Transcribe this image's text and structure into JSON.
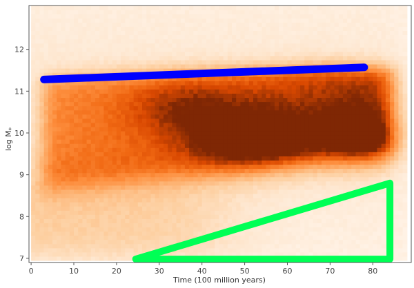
{
  "chart_data": {
    "type": "heatmap",
    "title": "",
    "xlabel": "Time (100 million years)",
    "ylabel": "log M",
    "ylabel_subscript": "*",
    "xlim": [
      -0.5,
      89
    ],
    "ylim": [
      6.9,
      13.05
    ],
    "x_ticks": [
      0,
      10,
      20,
      30,
      40,
      50,
      60,
      70,
      80
    ],
    "y_ticks": [
      7,
      8,
      9,
      10,
      11,
      12
    ],
    "grid": false,
    "colormap": "Oranges",
    "colors": {
      "low": "#fff5eb",
      "mid": "#fd8d3c",
      "high": "#7f2704",
      "blue_line": "#0000ff",
      "green_triangle": "#00ff55",
      "axis": "#555555"
    },
    "density_field": {
      "description": "2D histogram of stellar mass vs time; densest band spans log M between about 8.7 and 11.5",
      "x_range": [
        0,
        88
      ],
      "y_range": [
        6.95,
        13.0
      ]
    },
    "overlays": [
      {
        "type": "line",
        "color": "blue",
        "x": [
          3,
          78
        ],
        "y": [
          11.28,
          11.57
        ]
      },
      {
        "type": "triangle",
        "color": "green",
        "x": [
          24.5,
          84,
          84
        ],
        "y": [
          6.98,
          8.8,
          6.98
        ]
      }
    ]
  }
}
